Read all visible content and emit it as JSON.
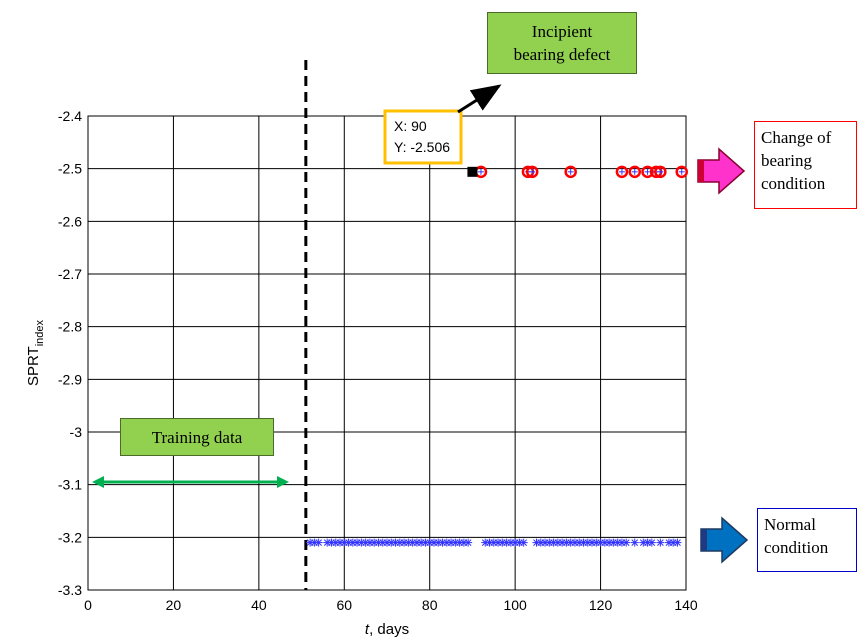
{
  "chart_data": {
    "type": "scatter",
    "title": "",
    "xlabel": "t, days",
    "ylabel": "SPRT",
    "ylabel_subscript": "index",
    "xlim": [
      0,
      140
    ],
    "ylim": [
      -3.3,
      -2.4
    ],
    "xticks": [
      0,
      20,
      40,
      60,
      80,
      100,
      120,
      140
    ],
    "yticks": [
      -2.4,
      -2.5,
      -2.6,
      -2.7,
      -2.8,
      -2.9,
      -3,
      -3.1,
      -3.2,
      -3.3
    ],
    "ytick_labels": [
      "-2.4",
      "-2.5",
      "-2.6",
      "-2.7",
      "-2.8",
      "-2.9",
      "-3",
      "-3.1",
      "-3.2",
      "-3.3"
    ],
    "grid": true,
    "training_boundary_x": 51,
    "series": [
      {
        "marker": "asterisk",
        "color": "#3333ff",
        "x": [
          52,
          53,
          54,
          56,
          57,
          58,
          59,
          60,
          61,
          62,
          63,
          64,
          65,
          66,
          67,
          68,
          69,
          70,
          71,
          72,
          73,
          74,
          75,
          76,
          77,
          78,
          79,
          80,
          81,
          82,
          83,
          84,
          85,
          86,
          87,
          88,
          89,
          93,
          94,
          95,
          96,
          97,
          98,
          99,
          100,
          101,
          102,
          105,
          106,
          107,
          108,
          109,
          110,
          111,
          112,
          113,
          114,
          115,
          116,
          117,
          118,
          119,
          120,
          121,
          122,
          123,
          124,
          125,
          126,
          128,
          130,
          131,
          132,
          134,
          136,
          137,
          138
        ],
        "y": -3.21
      },
      {
        "marker": "circle",
        "color": "#ff0000",
        "x": [
          92,
          103,
          104,
          113,
          125,
          128,
          131,
          133,
          134,
          139
        ],
        "y": -2.506
      }
    ],
    "highlight_point": {
      "x": 90,
      "y": -2.506,
      "color": "#000000"
    },
    "datatip": {
      "line1": "X: 90",
      "line2": "Y: -2.506"
    }
  },
  "annotations": {
    "incipient_line1": "Incipient",
    "incipient_line2": "bearing defect",
    "training_label": "Training data",
    "change_line1": "Change of",
    "change_line2": "bearing",
    "change_line3": "condition",
    "normal_line1": "Normal",
    "normal_line2": "condition"
  },
  "colors": {
    "box_green": "#92d050",
    "training_arrow": "#00b050",
    "change_border": "#ff0000",
    "normal_border": "#0000cc",
    "change_arrow": "#ff33cc",
    "normal_arrow": "#0070c0",
    "datatip_border": "#ffc000"
  }
}
